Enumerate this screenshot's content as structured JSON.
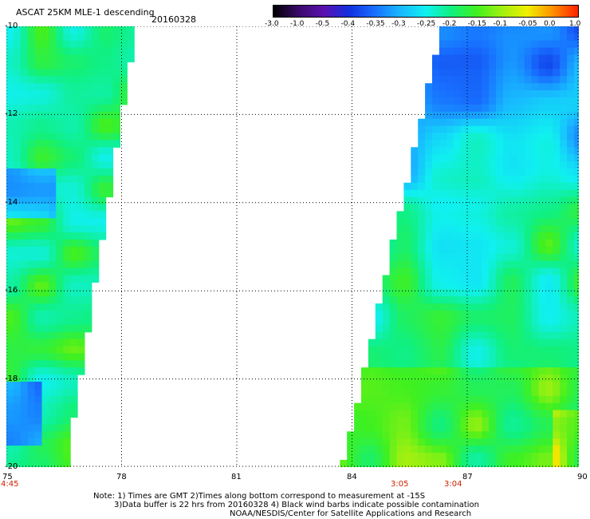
{
  "header": {
    "title": "ASCAT 25KM MLE-1 descending",
    "date": "20160328"
  },
  "colorbar": {
    "labels": [
      "-3.0",
      "-1.0",
      "-0.5",
      "-0.4",
      "-0.35",
      "-0.3",
      "-0.25",
      "-0.2",
      "-0.15",
      "-0.1",
      "-0.05",
      "0.0",
      "1.0"
    ]
  },
  "axes": {
    "x_labels": [
      "75",
      "78",
      "81",
      "84",
      "87",
      "90"
    ],
    "y_labels": [
      "-10",
      "-12",
      "-14",
      "-16",
      "-18",
      "-20"
    ],
    "time_labels": [
      "4:45",
      "3:05",
      "3:04"
    ]
  },
  "notes": {
    "line1": "Note: 1) Times are GMT 2)Times along bottom correspond to measurement at -15S",
    "line2": "3)Data buffer is 22 hrs from 20160328 4) Black wind barbs indicate possible contamination",
    "line3": "NOAA/NESDIS/Center for Satellite Applications and Research"
  },
  "colors": {
    "grid": "#000000",
    "time_label": "#cc2200",
    "palette": [
      "#000000",
      "#3a0a6a",
      "#5a10b0",
      "#1030e0",
      "#1870ff",
      "#18b8ff",
      "#10f0f0",
      "#10f080",
      "#40f020",
      "#a0f010",
      "#f0f000",
      "#ff9000",
      "#ff2000"
    ]
  }
}
